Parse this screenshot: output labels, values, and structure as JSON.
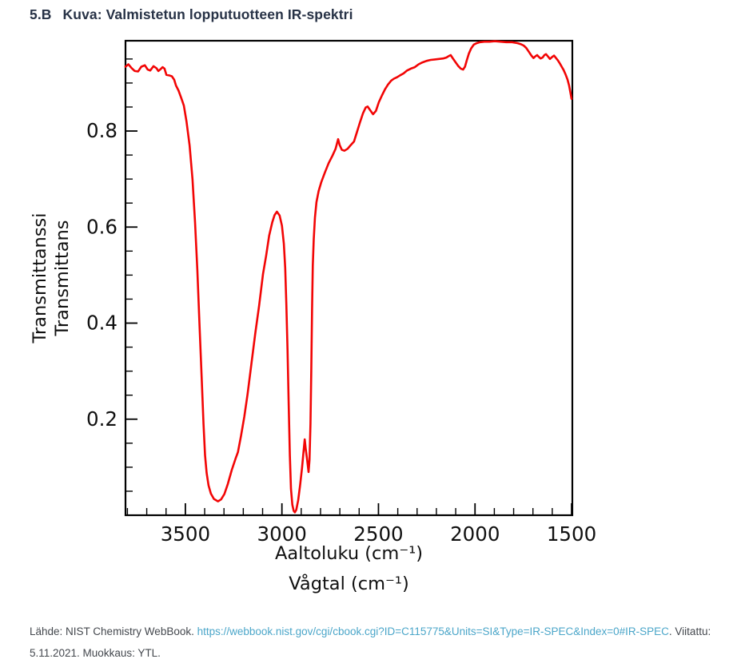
{
  "page": {
    "title_number": "5.B",
    "title_text": "Kuva: Valmistetun lopputuotteen IR-spektri"
  },
  "footer": {
    "prefix": "Lähde: NIST Chemistry WebBook. ",
    "link": "https://webbook.nist.gov/cgi/cbook.cgi?ID=C115775&Units=SI&Type=IR-SPEC&Index=0#IR-SPEC",
    "suffix": ". Viitattu: 5.11.2021. Muokkaus: YTL.",
    "link_color": "#4ba6c9",
    "text_color": "#44484e"
  },
  "chart_data": {
    "type": "line",
    "xlabel_fi": "Aaltoluku (cm⁻¹)",
    "xlabel_sv": "Vågtal (cm⁻¹)",
    "ylabel_fi": "Transmittanssi",
    "ylabel_sv": "Transmittans",
    "x_ticks": [
      3500,
      3000,
      2500,
      2000,
      1500
    ],
    "y_ticks": [
      0.2,
      0.4,
      0.6,
      0.8
    ],
    "x_minor_step": 100,
    "y_minor_step": 0.05,
    "xlim": [
      3810,
      1496
    ],
    "ylim": [
      0,
      0.988
    ],
    "x_axis_reversed": true,
    "grid": false,
    "legend": false,
    "line_color": "#f20505",
    "frame_color": "#000000",
    "series": [
      {
        "name": "IR-spektri",
        "points": [
          [
            3810,
            0.934
          ],
          [
            3795,
            0.939
          ],
          [
            3778,
            0.931
          ],
          [
            3762,
            0.925
          ],
          [
            3745,
            0.924
          ],
          [
            3728,
            0.934
          ],
          [
            3710,
            0.937
          ],
          [
            3695,
            0.928
          ],
          [
            3682,
            0.926
          ],
          [
            3665,
            0.935
          ],
          [
            3650,
            0.931
          ],
          [
            3640,
            0.925
          ],
          [
            3628,
            0.929
          ],
          [
            3618,
            0.933
          ],
          [
            3608,
            0.93
          ],
          [
            3598,
            0.917
          ],
          [
            3585,
            0.916
          ],
          [
            3570,
            0.914
          ],
          [
            3558,
            0.907
          ],
          [
            3549,
            0.895
          ],
          [
            3535,
            0.884
          ],
          [
            3520,
            0.867
          ],
          [
            3508,
            0.853
          ],
          [
            3494,
            0.82
          ],
          [
            3478,
            0.77
          ],
          [
            3463,
            0.7
          ],
          [
            3450,
            0.61
          ],
          [
            3438,
            0.51
          ],
          [
            3427,
            0.4
          ],
          [
            3416,
            0.29
          ],
          [
            3406,
            0.19
          ],
          [
            3398,
            0.125
          ],
          [
            3390,
            0.088
          ],
          [
            3380,
            0.062
          ],
          [
            3368,
            0.045
          ],
          [
            3352,
            0.034
          ],
          [
            3331,
            0.029
          ],
          [
            3315,
            0.033
          ],
          [
            3298,
            0.044
          ],
          [
            3280,
            0.065
          ],
          [
            3260,
            0.094
          ],
          [
            3240,
            0.118
          ],
          [
            3228,
            0.131
          ],
          [
            3212,
            0.165
          ],
          [
            3195,
            0.205
          ],
          [
            3178,
            0.252
          ],
          [
            3158,
            0.315
          ],
          [
            3138,
            0.378
          ],
          [
            3118,
            0.437
          ],
          [
            3098,
            0.502
          ],
          [
            3082,
            0.54
          ],
          [
            3066,
            0.582
          ],
          [
            3050,
            0.61
          ],
          [
            3038,
            0.625
          ],
          [
            3026,
            0.632
          ],
          [
            3012,
            0.624
          ],
          [
            3000,
            0.603
          ],
          [
            2990,
            0.565
          ],
          [
            2983,
            0.515
          ],
          [
            2977,
            0.44
          ],
          [
            2971,
            0.345
          ],
          [
            2965,
            0.235
          ],
          [
            2959,
            0.125
          ],
          [
            2953,
            0.055
          ],
          [
            2946,
            0.022
          ],
          [
            2939,
            0.009
          ],
          [
            2933,
            0.006
          ],
          [
            2926,
            0.011
          ],
          [
            2916,
            0.031
          ],
          [
            2906,
            0.062
          ],
          [
            2896,
            0.098
          ],
          [
            2888,
            0.132
          ],
          [
            2882,
            0.158
          ],
          [
            2876,
            0.136
          ],
          [
            2869,
            0.115
          ],
          [
            2862,
            0.09
          ],
          [
            2857,
            0.115
          ],
          [
            2852,
            0.19
          ],
          [
            2848,
            0.3
          ],
          [
            2844,
            0.43
          ],
          [
            2840,
            0.52
          ],
          [
            2835,
            0.575
          ],
          [
            2829,
            0.62
          ],
          [
            2821,
            0.652
          ],
          [
            2810,
            0.675
          ],
          [
            2796,
            0.694
          ],
          [
            2778,
            0.713
          ],
          [
            2758,
            0.733
          ],
          [
            2738,
            0.749
          ],
          [
            2722,
            0.763
          ],
          [
            2709,
            0.783
          ],
          [
            2701,
            0.771
          ],
          [
            2690,
            0.761
          ],
          [
            2676,
            0.759
          ],
          [
            2660,
            0.763
          ],
          [
            2643,
            0.771
          ],
          [
            2627,
            0.778
          ],
          [
            2612,
            0.797
          ],
          [
            2596,
            0.818
          ],
          [
            2580,
            0.837
          ],
          [
            2566,
            0.849
          ],
          [
            2556,
            0.851
          ],
          [
            2542,
            0.843
          ],
          [
            2528,
            0.835
          ],
          [
            2513,
            0.842
          ],
          [
            2498,
            0.86
          ],
          [
            2482,
            0.874
          ],
          [
            2466,
            0.887
          ],
          [
            2450,
            0.897
          ],
          [
            2434,
            0.905
          ],
          [
            2420,
            0.909
          ],
          [
            2404,
            0.912
          ],
          [
            2388,
            0.916
          ],
          [
            2370,
            0.92
          ],
          [
            2352,
            0.926
          ],
          [
            2332,
            0.93
          ],
          [
            2312,
            0.933
          ],
          [
            2292,
            0.939
          ],
          [
            2272,
            0.943
          ],
          [
            2252,
            0.946
          ],
          [
            2230,
            0.948
          ],
          [
            2208,
            0.949
          ],
          [
            2186,
            0.95
          ],
          [
            2165,
            0.951
          ],
          [
            2148,
            0.953
          ],
          [
            2136,
            0.956
          ],
          [
            2126,
            0.958
          ],
          [
            2116,
            0.952
          ],
          [
            2102,
            0.944
          ],
          [
            2088,
            0.936
          ],
          [
            2074,
            0.93
          ],
          [
            2062,
            0.928
          ],
          [
            2052,
            0.934
          ],
          [
            2042,
            0.948
          ],
          [
            2032,
            0.961
          ],
          [
            2020,
            0.972
          ],
          [
            2006,
            0.98
          ],
          [
            1991,
            0.983
          ],
          [
            1974,
            0.985
          ],
          [
            1952,
            0.986
          ],
          [
            1925,
            0.986
          ],
          [
            1897,
            0.987
          ],
          [
            1868,
            0.986
          ],
          [
            1838,
            0.985
          ],
          [
            1808,
            0.985
          ],
          [
            1780,
            0.983
          ],
          [
            1764,
            0.981
          ],
          [
            1748,
            0.978
          ],
          [
            1735,
            0.973
          ],
          [
            1721,
            0.965
          ],
          [
            1708,
            0.957
          ],
          [
            1697,
            0.952
          ],
          [
            1686,
            0.956
          ],
          [
            1678,
            0.958
          ],
          [
            1669,
            0.954
          ],
          [
            1660,
            0.951
          ],
          [
            1650,
            0.953
          ],
          [
            1641,
            0.958
          ],
          [
            1632,
            0.96
          ],
          [
            1622,
            0.955
          ],
          [
            1612,
            0.95
          ],
          [
            1601,
            0.954
          ],
          [
            1591,
            0.957
          ],
          [
            1581,
            0.952
          ],
          [
            1571,
            0.947
          ],
          [
            1561,
            0.941
          ],
          [
            1551,
            0.934
          ],
          [
            1541,
            0.927
          ],
          [
            1531,
            0.918
          ],
          [
            1521,
            0.907
          ],
          [
            1513,
            0.895
          ],
          [
            1506,
            0.88
          ],
          [
            1500,
            0.867
          ]
        ]
      }
    ]
  }
}
